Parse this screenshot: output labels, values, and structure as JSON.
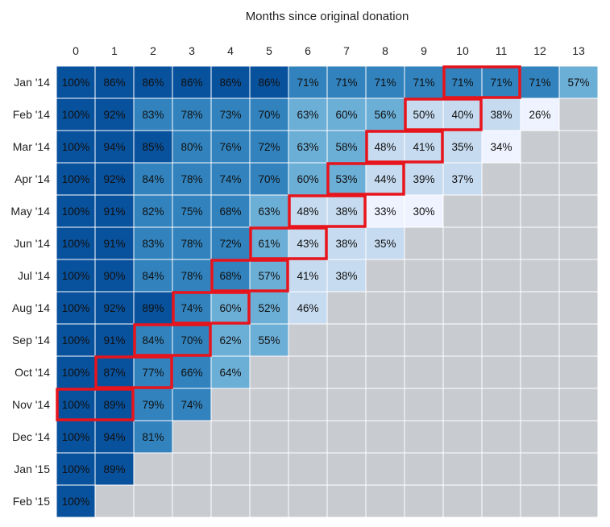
{
  "chart_data": {
    "type": "heatmap",
    "title": "Months since original donation",
    "x": [
      "0",
      "1",
      "2",
      "3",
      "4",
      "5",
      "6",
      "7",
      "8",
      "9",
      "10",
      "11",
      "12",
      "13"
    ],
    "y": [
      "Jan '14",
      "Feb '14",
      "Mar '14",
      "Apr '14",
      "May '14",
      "Jun '14",
      "Jul '14",
      "Aug '14",
      "Sep '14",
      "Oct '14",
      "Nov '14",
      "Dec '14",
      "Jan '15",
      "Feb '15"
    ],
    "values": [
      [
        100,
        86,
        86,
        86,
        86,
        86,
        71,
        71,
        71,
        71,
        71,
        71,
        71,
        57
      ],
      [
        100,
        92,
        83,
        78,
        73,
        70,
        63,
        60,
        56,
        50,
        40,
        38,
        26,
        null
      ],
      [
        100,
        94,
        85,
        80,
        76,
        72,
        63,
        58,
        48,
        41,
        35,
        34,
        null,
        null
      ],
      [
        100,
        92,
        84,
        78,
        74,
        70,
        60,
        53,
        44,
        39,
        37,
        null,
        null,
        null
      ],
      [
        100,
        91,
        82,
        75,
        68,
        63,
        48,
        38,
        33,
        30,
        null,
        null,
        null,
        null
      ],
      [
        100,
        91,
        83,
        78,
        72,
        61,
        43,
        38,
        35,
        null,
        null,
        null,
        null,
        null
      ],
      [
        100,
        90,
        84,
        78,
        68,
        57,
        41,
        38,
        null,
        null,
        null,
        null,
        null,
        null
      ],
      [
        100,
        92,
        89,
        74,
        60,
        52,
        46,
        null,
        null,
        null,
        null,
        null,
        null,
        null
      ],
      [
        100,
        91,
        84,
        70,
        62,
        55,
        null,
        null,
        null,
        null,
        null,
        null,
        null,
        null
      ],
      [
        100,
        87,
        77,
        66,
        64,
        null,
        null,
        null,
        null,
        null,
        null,
        null,
        null,
        null
      ],
      [
        100,
        89,
        79,
        74,
        null,
        null,
        null,
        null,
        null,
        null,
        null,
        null,
        null,
        null
      ],
      [
        100,
        94,
        81,
        null,
        null,
        null,
        null,
        null,
        null,
        null,
        null,
        null,
        null,
        null
      ],
      [
        100,
        89,
        null,
        null,
        null,
        null,
        null,
        null,
        null,
        null,
        null,
        null,
        null,
        null
      ],
      [
        100,
        null,
        null,
        null,
        null,
        null,
        null,
        null,
        null,
        null,
        null,
        null,
        null,
        null
      ]
    ],
    "value_suffix": "%",
    "highlighted_cells": [
      [
        0,
        10
      ],
      [
        0,
        11
      ],
      [
        1,
        9
      ],
      [
        1,
        10
      ],
      [
        2,
        8
      ],
      [
        2,
        9
      ],
      [
        3,
        7
      ],
      [
        3,
        8
      ],
      [
        4,
        6
      ],
      [
        4,
        7
      ],
      [
        5,
        5
      ],
      [
        5,
        6
      ],
      [
        6,
        4
      ],
      [
        6,
        5
      ],
      [
        7,
        3
      ],
      [
        7,
        4
      ],
      [
        8,
        2
      ],
      [
        8,
        3
      ],
      [
        9,
        1
      ],
      [
        9,
        2
      ],
      [
        10,
        0
      ],
      [
        10,
        1
      ]
    ],
    "colors": {
      "dark": "#08519c",
      "mid": "#3182bd",
      "light": "#6baed6",
      "pale": "#c6dbef",
      "palest": "#eff3ff",
      "empty": "#c8cbd0",
      "highlight": "#e8141c",
      "grid": "#ffffff"
    }
  }
}
